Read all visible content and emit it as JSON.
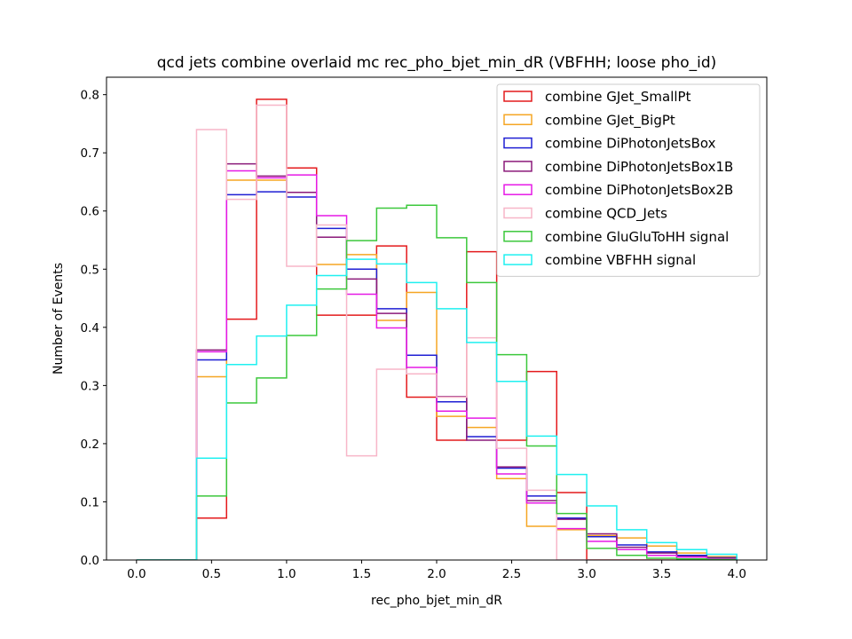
{
  "chart_data": {
    "type": "histogram-step",
    "title": "qcd jets combine overlaid mc rec_pho_bjet_min_dR (VBFHH; loose pho_id)",
    "xlabel": "rec_pho_bjet_min_dR",
    "ylabel": "Number of Events",
    "xlim": [
      -0.2,
      4.2
    ],
    "ylim": [
      0,
      0.83
    ],
    "xticks": [
      0.0,
      0.5,
      1.0,
      1.5,
      2.0,
      2.5,
      3.0,
      3.5,
      4.0
    ],
    "xtick_labels": [
      "0.0",
      "0.5",
      "1.0",
      "1.5",
      "2.0",
      "2.5",
      "3.0",
      "3.5",
      "4.0"
    ],
    "yticks": [
      0.0,
      0.1,
      0.2,
      0.3,
      0.4,
      0.5,
      0.6,
      0.7,
      0.8
    ],
    "ytick_labels": [
      "0.0",
      "0.1",
      "0.2",
      "0.3",
      "0.4",
      "0.5",
      "0.6",
      "0.7",
      "0.8"
    ],
    "legend_position": "top-right",
    "bin_edges": [
      0.0,
      0.2,
      0.4,
      0.6,
      0.8,
      1.0,
      1.2,
      1.4,
      1.6,
      1.8,
      2.0,
      2.2,
      2.4,
      2.6,
      2.8,
      3.0,
      3.2,
      3.4,
      3.6,
      3.8,
      4.0
    ],
    "series": [
      {
        "name": "combine GJet_SmallPt",
        "color": "#e41a1c",
        "values": [
          0,
          0,
          0.072,
          0.414,
          0.792,
          0.674,
          0.421,
          0.421,
          0.54,
          0.28,
          0.206,
          0.53,
          0.206,
          0.324,
          0.116,
          0,
          0,
          0,
          0,
          0
        ]
      },
      {
        "name": "combine GJet_BigPt",
        "color": "#f5a623",
        "values": [
          0,
          0,
          0.315,
          0.653,
          0.653,
          0.632,
          0.508,
          0.525,
          0.412,
          0.46,
          0.247,
          0.228,
          0.14,
          0.058,
          0.052,
          0.042,
          0.038,
          0.024,
          0.012,
          0.006
        ]
      },
      {
        "name": "combine DiPhotonJetsBox",
        "color": "#1f1fd4",
        "values": [
          0,
          0,
          0.344,
          0.628,
          0.633,
          0.624,
          0.57,
          0.5,
          0.432,
          0.352,
          0.272,
          0.212,
          0.158,
          0.11,
          0.072,
          0.04,
          0.026,
          0.014,
          0.008,
          0.004
        ]
      },
      {
        "name": "combine DiPhotonJetsBox1B",
        "color": "#8b1a7a",
        "values": [
          0,
          0,
          0.361,
          0.681,
          0.66,
          0.632,
          0.555,
          0.483,
          0.424,
          0.32,
          0.281,
          0.206,
          0.16,
          0.102,
          0.07,
          0.045,
          0.022,
          0.012,
          0.006,
          0.003
        ]
      },
      {
        "name": "combine DiPhotonJetsBox2B",
        "color": "#e61ae6",
        "values": [
          0,
          0,
          0.358,
          0.669,
          0.657,
          0.662,
          0.592,
          0.457,
          0.399,
          0.331,
          0.256,
          0.244,
          0.148,
          0.098,
          0.054,
          0.032,
          0.018,
          0.008,
          0.005,
          0.002
        ]
      },
      {
        "name": "combine QCD_Jets",
        "color": "#f7b6c8",
        "values": [
          0,
          0,
          0.74,
          0.62,
          0.782,
          0.505,
          0.576,
          0.179,
          0.328,
          0.32,
          0.28,
          0.382,
          0.192,
          0.12,
          0,
          0,
          0,
          0,
          0,
          0
        ]
      },
      {
        "name": "combine GluGluToHH signal",
        "color": "#3cc83c",
        "values": [
          0,
          0,
          0.11,
          0.27,
          0.313,
          0.386,
          0.466,
          0.549,
          0.605,
          0.61,
          0.554,
          0.477,
          0.353,
          0.196,
          0.08,
          0.02,
          0.008,
          0.003,
          0.002,
          0.001
        ]
      },
      {
        "name": "combine VBFHH signal",
        "color": "#1ff0f0",
        "values": [
          0,
          0,
          0.175,
          0.336,
          0.385,
          0.438,
          0.489,
          0.517,
          0.509,
          0.477,
          0.432,
          0.374,
          0.307,
          0.213,
          0.147,
          0.093,
          0.052,
          0.03,
          0.018,
          0.01
        ]
      }
    ]
  }
}
